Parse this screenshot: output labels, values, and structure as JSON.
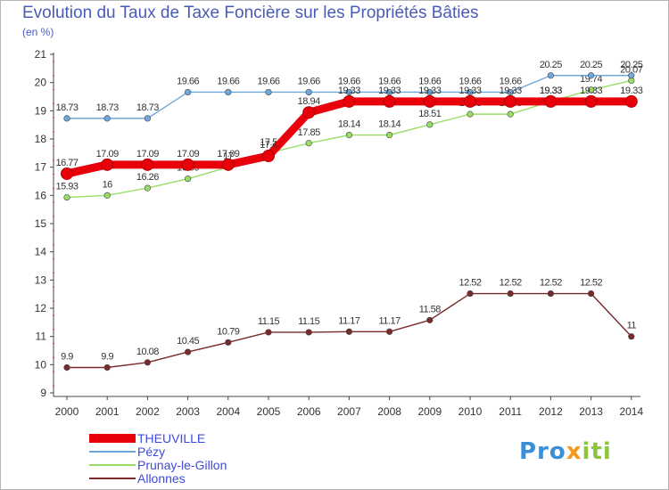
{
  "chart_data": {
    "type": "line",
    "title": "Evolution du Taux de Taxe Foncière sur les Propriétés Bâties",
    "ylabel": "(en %)",
    "xlabel": "",
    "x": [
      "2000",
      "2001",
      "2002",
      "2003",
      "2004",
      "2005",
      "2006",
      "2007",
      "2008",
      "2009",
      "2010",
      "2011",
      "2012",
      "2013",
      "2014"
    ],
    "ylim": [
      9,
      21
    ],
    "yticks": [
      9,
      10,
      11,
      12,
      13,
      14,
      15,
      16,
      17,
      18,
      19,
      20,
      21
    ],
    "grid": false,
    "legend_position": "bottom-left",
    "series": [
      {
        "name": "THEUVILLE",
        "color": "#e8000b",
        "values": [
          16.77,
          17.09,
          17.09,
          17.09,
          17.09,
          17.4,
          18.94,
          19.33,
          19.33,
          19.33,
          19.33,
          19.33,
          19.33,
          19.33,
          19.33
        ]
      },
      {
        "name": "Pézy",
        "color": "#6fa8dc",
        "values": [
          18.73,
          18.73,
          18.73,
          19.66,
          19.66,
          19.66,
          19.66,
          19.66,
          19.66,
          19.66,
          19.66,
          19.66,
          20.25,
          20.25,
          20.25
        ]
      },
      {
        "name": "Prunay-le-Gillon",
        "color": "#99dd66",
        "values": [
          15.93,
          16,
          16.26,
          16.59,
          17,
          17.5,
          17.85,
          18.14,
          18.14,
          18.51,
          18.88,
          18.88,
          19.33,
          19.74,
          20.07
        ]
      },
      {
        "name": "Allonnes",
        "color": "#7a2a2a",
        "values": [
          9.9,
          9.9,
          10.08,
          10.45,
          10.79,
          11.15,
          11.15,
          11.17,
          11.17,
          11.58,
          12.52,
          12.52,
          12.52,
          12.52,
          11
        ]
      }
    ]
  },
  "logo": {
    "parts": [
      "Pro",
      "x",
      "iti"
    ],
    "colors": [
      "#3b8ed8",
      "#f39a1e",
      "#8cc63f"
    ]
  }
}
